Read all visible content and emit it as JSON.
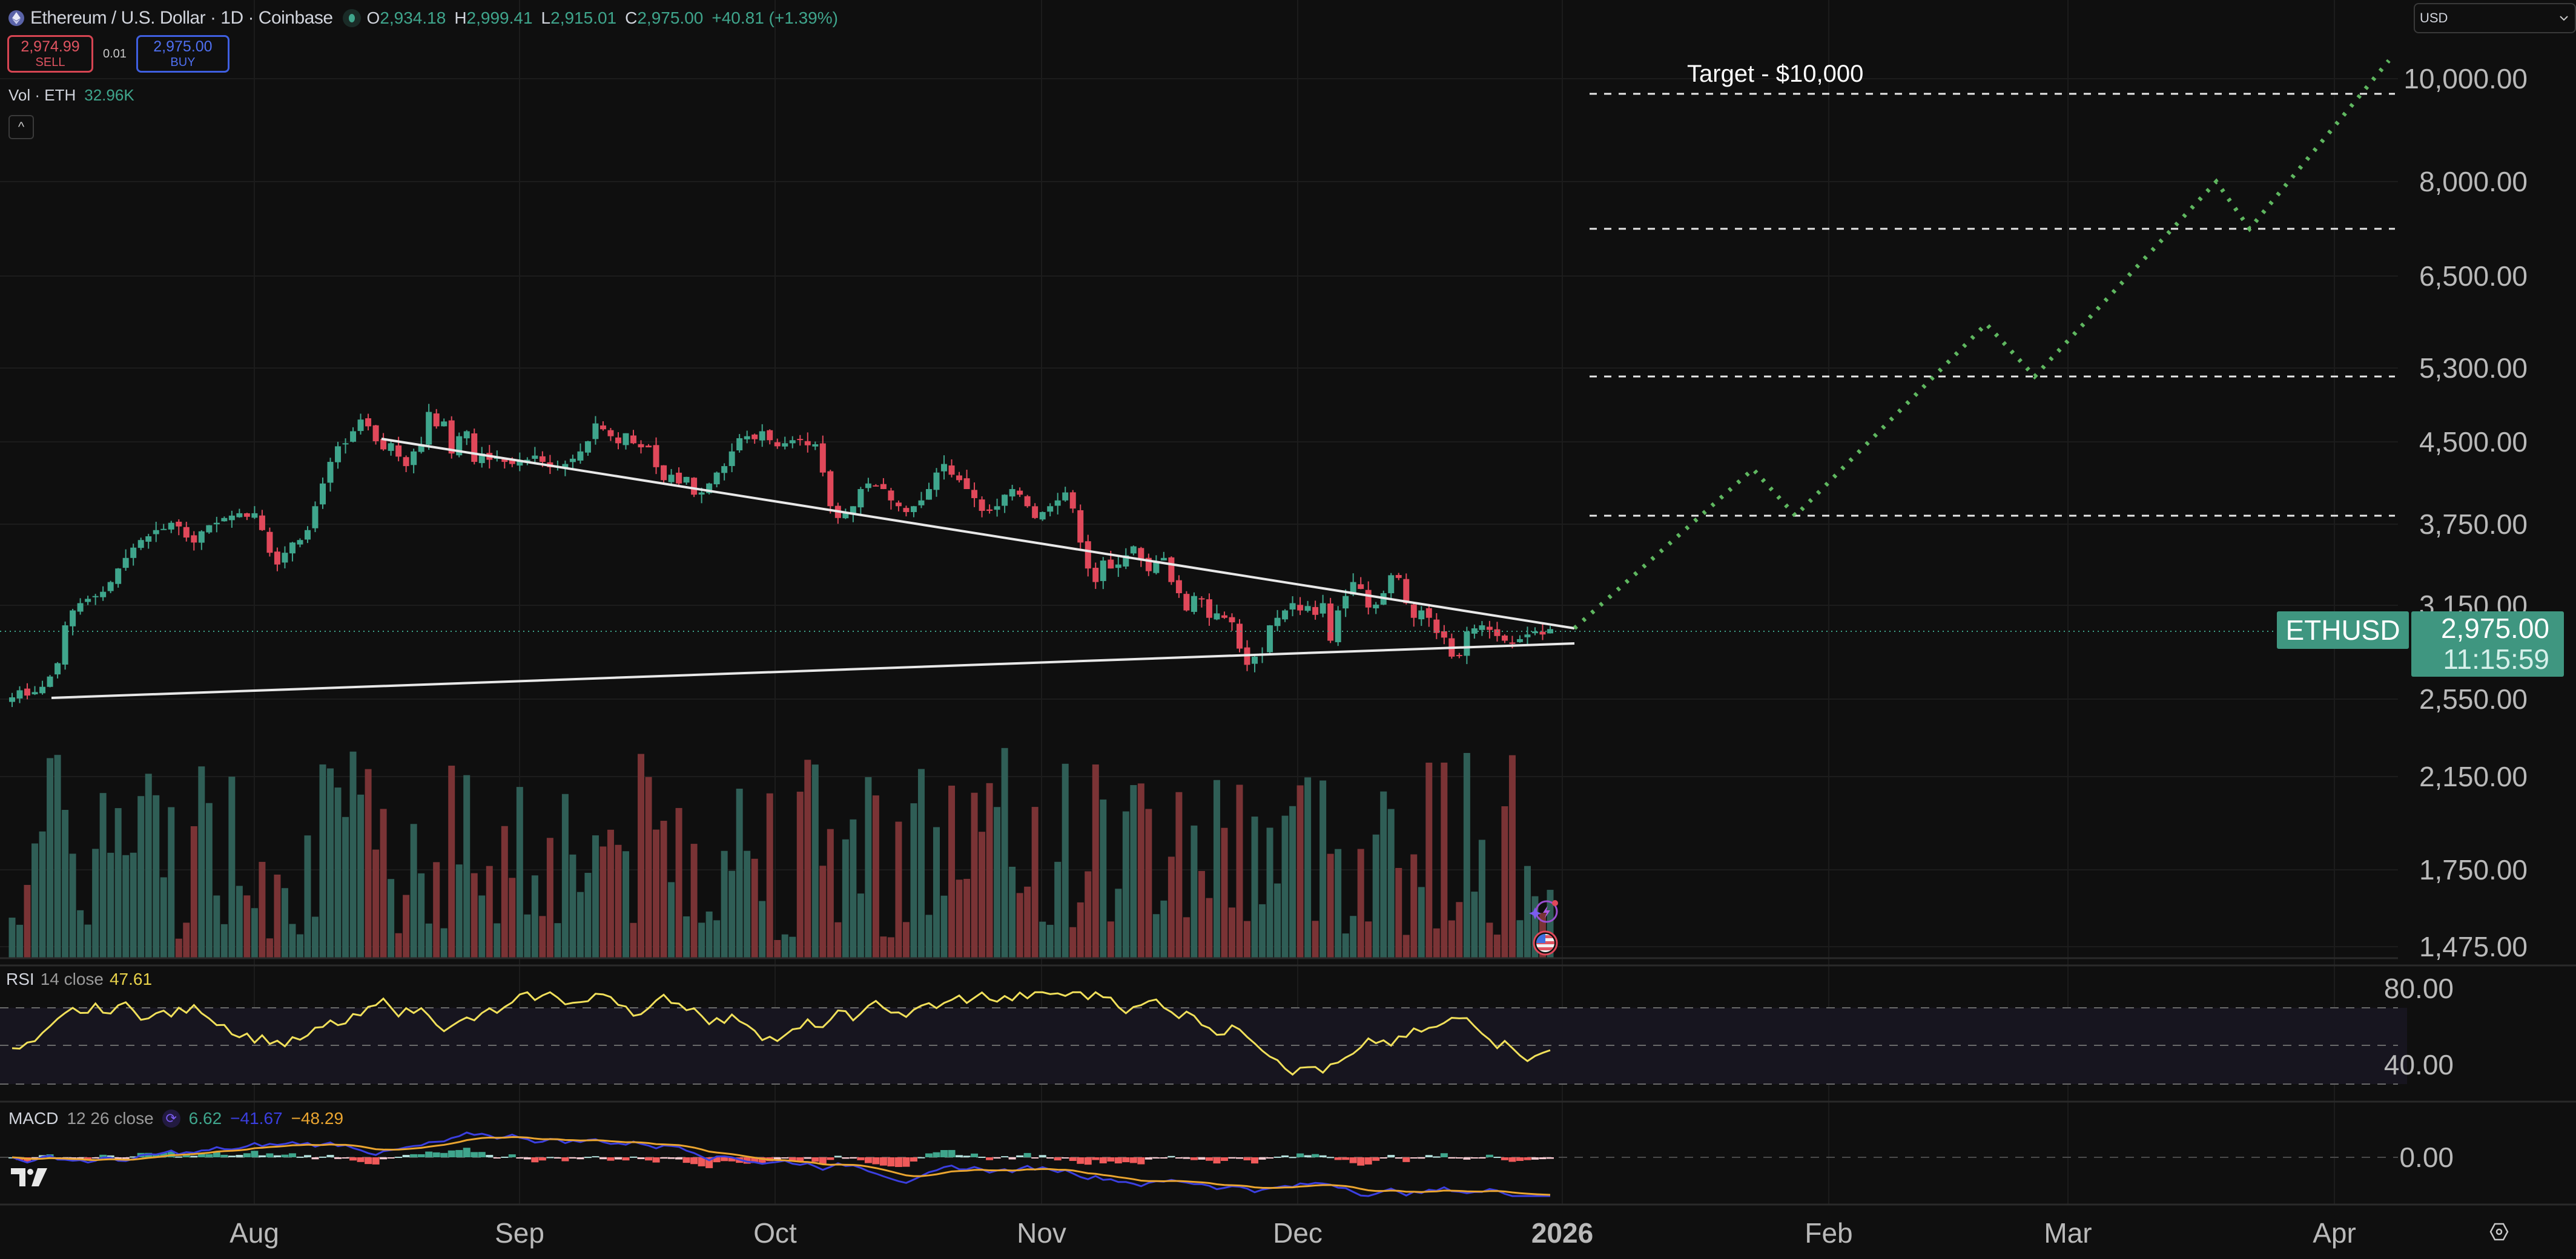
{
  "header": {
    "symbol_title": "Ethereum / U.S. Dollar · 1D · Coinbase",
    "ohlc": [
      {
        "key": "O",
        "value": "2,934.18"
      },
      {
        "key": "H",
        "value": "2,999.41"
      },
      {
        "key": "L",
        "value": "2,915.01"
      },
      {
        "key": "C",
        "value": "2,975.00"
      }
    ],
    "change": "+40.81 (+1.39%)"
  },
  "trade": {
    "sell_price": "2,974.99",
    "sell_label": "SELL",
    "spread": "0.01",
    "buy_price": "2,975.00",
    "buy_label": "BUY"
  },
  "volume_legend": {
    "label": "Vol · ETH",
    "value": "32.96K"
  },
  "collapse_button": "^",
  "currency_select": {
    "value": "USD"
  },
  "price_axis": [
    "10,000.00",
    "8,000.00",
    "6,500.00",
    "5,300.00",
    "4,500.00",
    "3,750.00",
    "3,150.00",
    "2,550.00",
    "2,150.00",
    "1,750.00",
    "1,475.00"
  ],
  "symbol_tag": "ETHUSD",
  "last_price_tag": {
    "price": "2,975.00",
    "countdown": "11:15:59"
  },
  "annotation": {
    "target_text": "Target - $10,000"
  },
  "rsi": {
    "name": "RSI",
    "params": "14 close",
    "value": "47.61",
    "axis": [
      "80.00",
      "40.00"
    ]
  },
  "macd": {
    "name": "MACD",
    "params": "12 26 close",
    "hist": "6.62",
    "macd": "−41.67",
    "signal": "−48.29",
    "axis": [
      "0.00"
    ]
  },
  "time_axis": [
    "Aug",
    "Sep",
    "Oct",
    "Nov",
    "Dec",
    "2026",
    "Feb",
    "Mar",
    "Apr"
  ],
  "colors": {
    "up": "#3fa58c",
    "down": "#e0485a",
    "vol_up": "#2f5e56",
    "vol_down": "#7a3335",
    "projection": "#5fb760",
    "rsi_line": "#f1e05a",
    "macd_line": "#3b3fe0",
    "signal_line": "#eaa530",
    "background": "#0f0f0f"
  },
  "chart_data": {
    "type": "candlestick",
    "title": "Ethereum / U.S. Dollar · 1D · Coinbase",
    "x_labels": [
      "Aug",
      "Sep",
      "Oct",
      "Nov",
      "Dec",
      "2026",
      "Feb",
      "Mar",
      "Apr"
    ],
    "y_ticks": [
      10000,
      8000,
      6500,
      5300,
      4500,
      3750,
      3150,
      2550,
      2150,
      1750,
      1475
    ],
    "y_scale": "log",
    "last": {
      "open": 2934.18,
      "high": 2999.41,
      "low": 2915.01,
      "close": 2975.0,
      "change": 40.81,
      "change_pct": 1.39
    },
    "closes_approx": [
      2560,
      2600,
      2570,
      2590,
      2620,
      2680,
      2760,
      3000,
      3100,
      3150,
      3180,
      3200,
      3230,
      3300,
      3400,
      3480,
      3560,
      3620,
      3650,
      3700,
      3710,
      3760,
      3730,
      3640,
      3600,
      3690,
      3740,
      3760,
      3800,
      3820,
      3840,
      3810,
      3840,
      3700,
      3520,
      3430,
      3520,
      3600,
      3620,
      3700,
      3900,
      4100,
      4300,
      4450,
      4480,
      4600,
      4720,
      4650,
      4500,
      4420,
      4480,
      4350,
      4260,
      4400,
      4470,
      4800,
      4650,
      4700,
      4380,
      4550,
      4600,
      4300,
      4380,
      4320,
      4340,
      4300,
      4280,
      4310,
      4320,
      4360,
      4300,
      4250,
      4260,
      4280,
      4330,
      4400,
      4500,
      4680,
      4620,
      4550,
      4480,
      4580,
      4480,
      4440,
      4440,
      4250,
      4130,
      4180,
      4100,
      4160,
      4000,
      4020,
      4100,
      4200,
      4260,
      4400,
      4530,
      4550,
      4520,
      4600,
      4510,
      4450,
      4480,
      4510,
      4520,
      4460,
      4470,
      4200,
      3900,
      3800,
      3850,
      3900,
      4050,
      4100,
      4080,
      4050,
      3950,
      3900,
      3850,
      3900,
      3950,
      4050,
      4200,
      4280,
      4180,
      4130,
      4050,
      3970,
      3860,
      3860,
      3900,
      4000,
      4050,
      4000,
      3900,
      3800,
      3850,
      3900,
      3950,
      4020,
      3880,
      3600,
      3400,
      3300,
      3460,
      3400,
      3430,
      3500,
      3570,
      3470,
      3380,
      3450,
      3480,
      3300,
      3220,
      3100,
      3200,
      3180,
      3050,
      3080,
      3050,
      3020,
      2850,
      2750,
      2800,
      2820,
      3000,
      3050,
      3100,
      3150,
      3100,
      3130,
      3070,
      3150,
      2900,
      3100,
      3200,
      3300,
      3250,
      3120,
      3140,
      3220,
      3350,
      3330,
      3150,
      3050,
      3100,
      3050,
      2950,
      2920,
      2800,
      2810,
      2960,
      2980,
      3000,
      2970,
      2930,
      2900,
      2880,
      2910,
      2940,
      2960,
      2940,
      2975
    ],
    "volume_note": "Daily volume bars colored by candle direction",
    "trendlines": [
      {
        "name": "descending resistance",
        "from": {
          "date": "mid-Aug",
          "price": 4600
        },
        "to": {
          "date": "~Jan 1",
          "price": 3020
        }
      },
      {
        "name": "ascending support",
        "from": {
          "date": "mid-Jul",
          "price": 2550
        },
        "to": {
          "date": "~Jan 1",
          "price": 2900
        }
      }
    ],
    "horizontal_levels": [
      3750,
      5200,
      6950,
      9600
    ],
    "projection_path": [
      {
        "date": "Jan 1",
        "price": 2975
      },
      {
        "date": "Jan 22",
        "price": 4200
      },
      {
        "date": "Jan 28",
        "price": 3800
      },
      {
        "date": "Feb 20",
        "price": 5900
      },
      {
        "date": "Feb 27",
        "price": 5300
      },
      {
        "date": "Mar 20",
        "price": 8200
      },
      {
        "date": "Mar 26",
        "price": 7000
      },
      {
        "date": "Apr 8",
        "price": 10500
      }
    ],
    "annotation": "Target - $10,000",
    "rsi": {
      "period": 14,
      "last": 47.61,
      "bands": [
        70,
        50,
        30
      ],
      "axis_ticks": [
        80,
        40
      ]
    },
    "macd": {
      "fast": 12,
      "slow": 26,
      "histogram": 6.62,
      "macd": -41.67,
      "signal": -48.29,
      "axis_ticks": [
        0
      ]
    }
  }
}
